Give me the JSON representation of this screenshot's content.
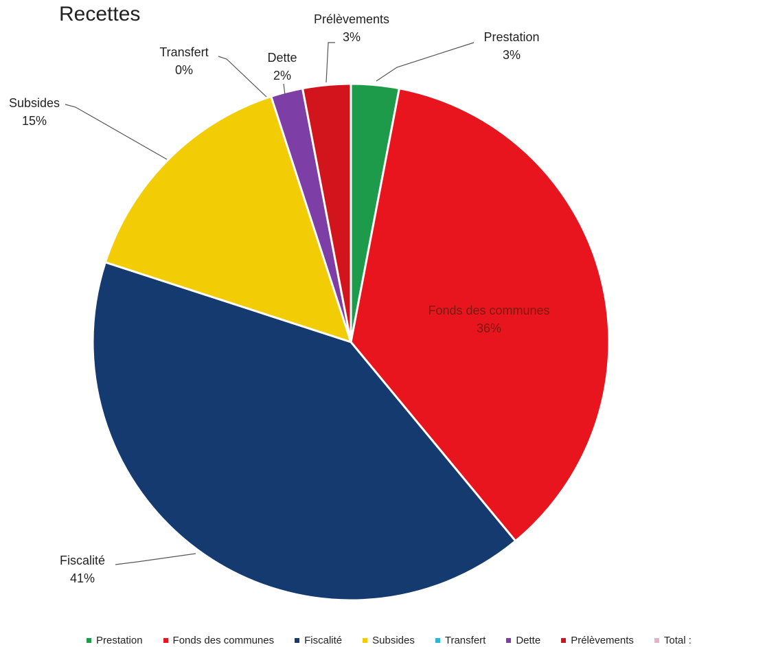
{
  "chart_data": {
    "type": "pie",
    "title": "Recettes",
    "slices": [
      {
        "label": "Prestation",
        "value": 3,
        "display": "3%",
        "color": "#1e9a4b"
      },
      {
        "label": "Fonds des communes",
        "value": 36,
        "display": "36%",
        "color": "#e8151e"
      },
      {
        "label": "Fiscalité",
        "value": 41,
        "display": "41%",
        "color": "#143a70"
      },
      {
        "label": "Subsides",
        "value": 15,
        "display": "15%",
        "color": "#f2cc05"
      },
      {
        "label": "Transfert",
        "value": 0,
        "display": "0%",
        "color": "#2bb6d9"
      },
      {
        "label": "Dette",
        "value": 2,
        "display": "2%",
        "color": "#7d3fa6"
      },
      {
        "label": "Prélèvements",
        "value": 3,
        "display": "3%",
        "color": "#d2151c"
      }
    ],
    "legend": {
      "position": "bottom",
      "items": [
        "Prestation",
        "Fonds des communes",
        "Fiscalité",
        "Subsides",
        "Transfert",
        "Dette",
        "Prélèvements",
        "Total :"
      ],
      "extra_item": {
        "label": "Total :",
        "color": "#e2b5c4"
      }
    }
  }
}
